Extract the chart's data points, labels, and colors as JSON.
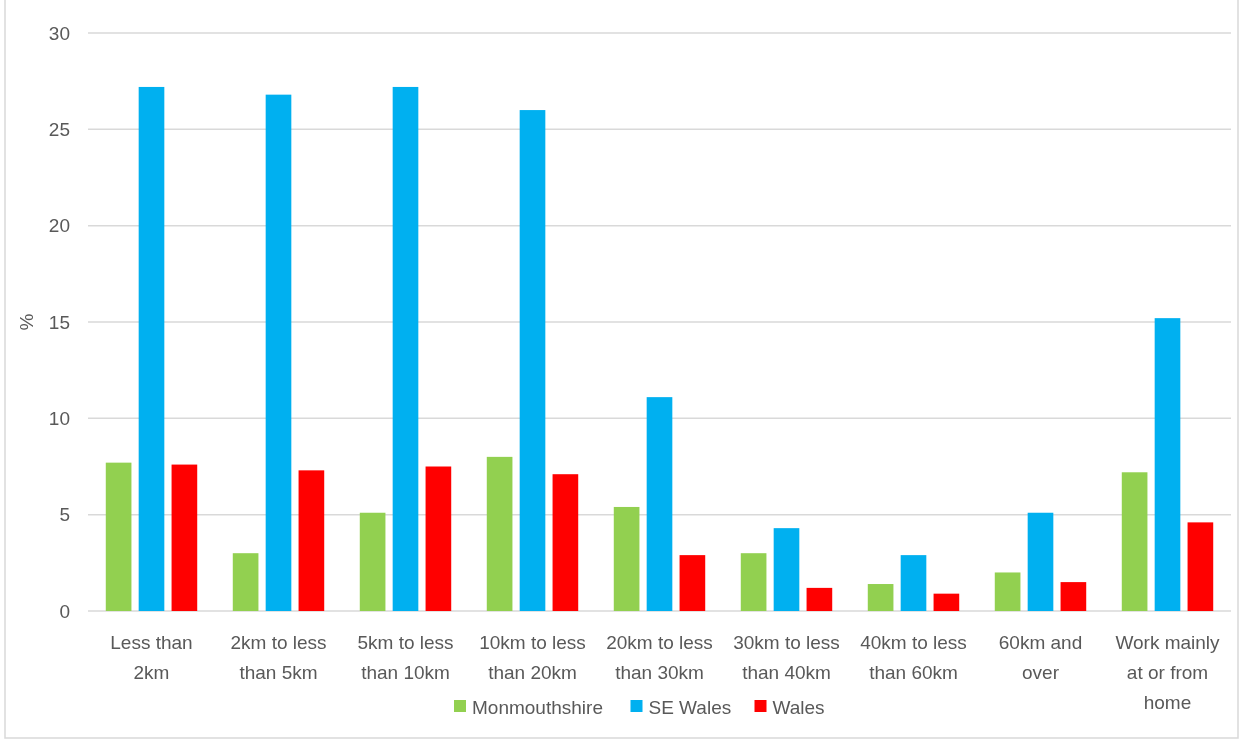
{
  "chart_data": {
    "type": "bar",
    "ylabel": "%",
    "categories": [
      "Less than 2km",
      "2km to less than 5km",
      "5km to less than 10km",
      "10km to less than 20km",
      "20km to less than 30km",
      "30km to less than 40km",
      "40km to less than 60km",
      "60km and over",
      "Work mainly at or from home"
    ],
    "series": [
      {
        "name": "Monmouthshire",
        "color": "#92d050",
        "values": [
          7.7,
          3.0,
          5.1,
          8.0,
          5.4,
          3.0,
          1.4,
          2.0,
          7.2
        ]
      },
      {
        "name": "SE Wales",
        "color": "#00b0f0",
        "values": [
          27.2,
          26.8,
          27.2,
          26.0,
          11.1,
          4.3,
          2.9,
          5.1,
          15.2
        ]
      },
      {
        "name": "Wales",
        "color": "#ff0000",
        "values": [
          7.6,
          7.3,
          7.5,
          7.1,
          2.9,
          1.2,
          0.9,
          1.5,
          4.6
        ]
      }
    ],
    "ylim": [
      0,
      30
    ],
    "yticks": [
      0,
      5,
      10,
      15,
      20,
      25,
      30
    ],
    "grid": "y",
    "legend": "bottom"
  }
}
